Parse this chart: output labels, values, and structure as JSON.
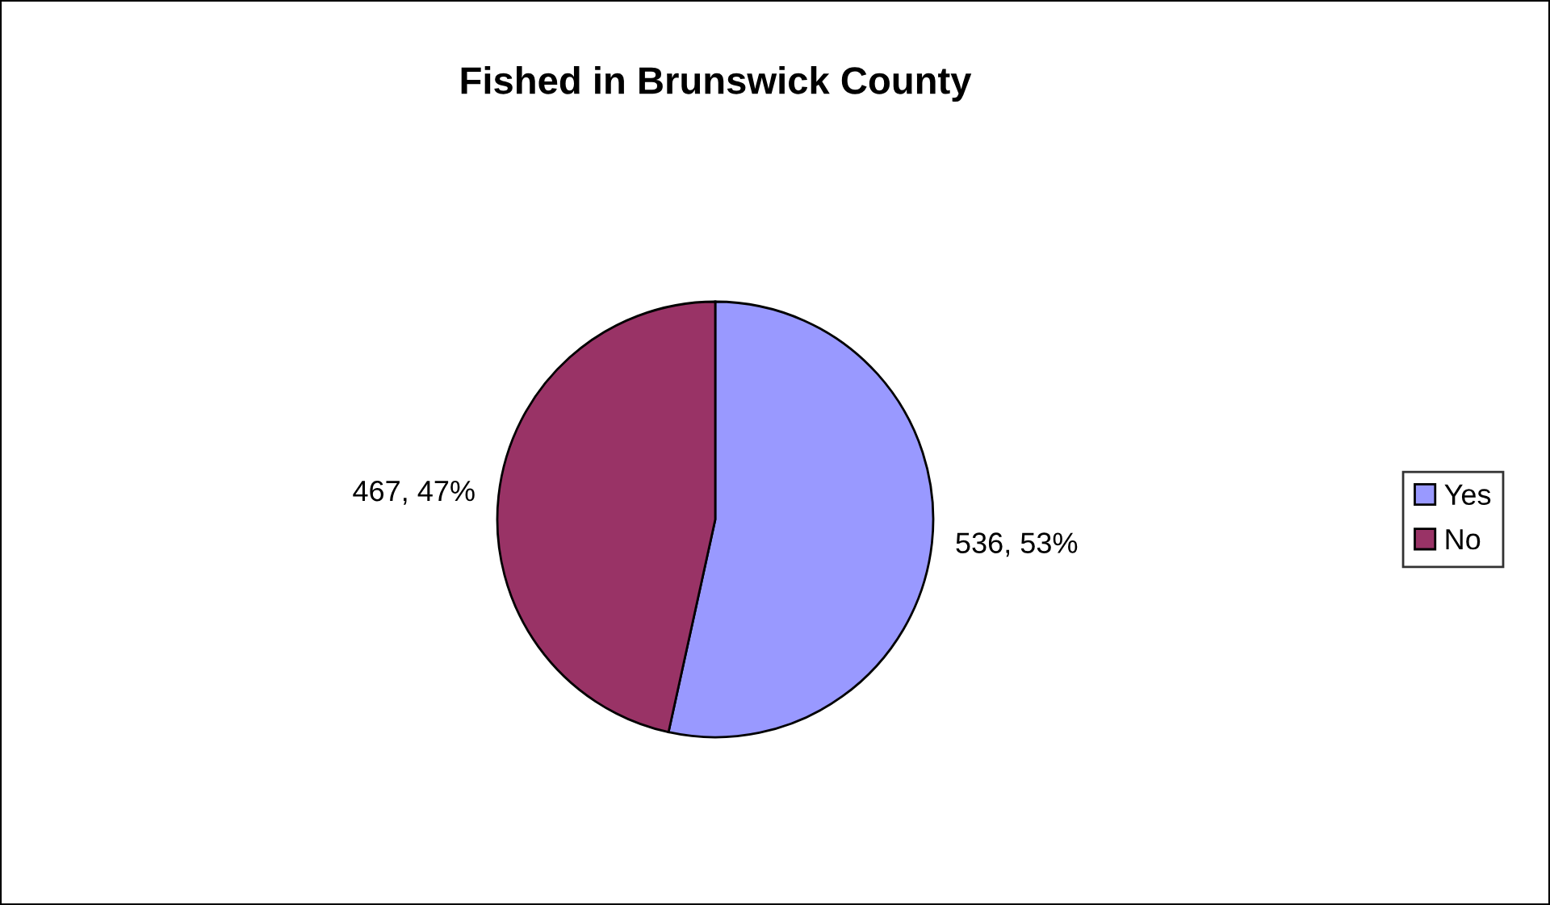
{
  "chart_data": {
    "type": "pie",
    "title": "Fished in Brunswick County",
    "categories": [
      "Yes",
      "No"
    ],
    "values": [
      536,
      467
    ],
    "colors": [
      "#9999ff",
      "#993366"
    ],
    "value_labels": [
      "536, 53%",
      "467, 47%"
    ],
    "legend": "right"
  }
}
